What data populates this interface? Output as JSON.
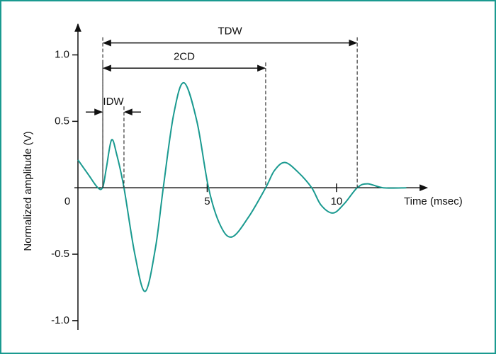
{
  "chart_data": {
    "type": "line",
    "x_label": "Time (msec)",
    "y_label": "Normalized amplitude (V)",
    "x": [
      0,
      0.4,
      0.77,
      0.96,
      1.1,
      1.3,
      1.5,
      1.78,
      2.2,
      2.6,
      3.0,
      3.3,
      3.7,
      4.1,
      4.6,
      5.05,
      5.5,
      5.96,
      6.6,
      7.26,
      7.6,
      8.0,
      8.5,
      9.04,
      9.4,
      9.86,
      10.3,
      10.8,
      11.2,
      11.8,
      12.7
    ],
    "series": [
      {
        "color": "#1a9a90",
        "values": [
          0.21,
          0.1,
          0,
          0.005,
          0.15,
          0.36,
          0.25,
          0,
          -0.5,
          -0.78,
          -0.45,
          0,
          0.55,
          0.79,
          0.5,
          0,
          -0.28,
          -0.37,
          -0.22,
          0,
          0.13,
          0.19,
          0.12,
          0,
          -0.13,
          -0.19,
          -0.12,
          0,
          0.03,
          0,
          0
        ]
      }
    ],
    "xlim": [
      0,
      13.4
    ],
    "ylim": [
      -1.07,
      1.2
    ],
    "xticks": [
      0,
      5,
      10
    ],
    "yticks": [
      {
        "value": -1,
        "label": "-1.0"
      },
      {
        "value": -0.5,
        "label": "-0.5"
      },
      {
        "value": 0.5,
        "label": "0.5"
      },
      {
        "value": 1,
        "label": "1.0"
      }
    ],
    "annotations": [
      {
        "text": "TDW",
        "x_start": 0.96,
        "x_end": 10.8,
        "y": 1.09
      },
      {
        "text": "2CD",
        "x_start": 0.96,
        "x_end": 7.26,
        "y": 0.9
      },
      {
        "text": "IDW",
        "x_start": 0.96,
        "x_end": 1.78,
        "y": 0.57
      }
    ]
  }
}
